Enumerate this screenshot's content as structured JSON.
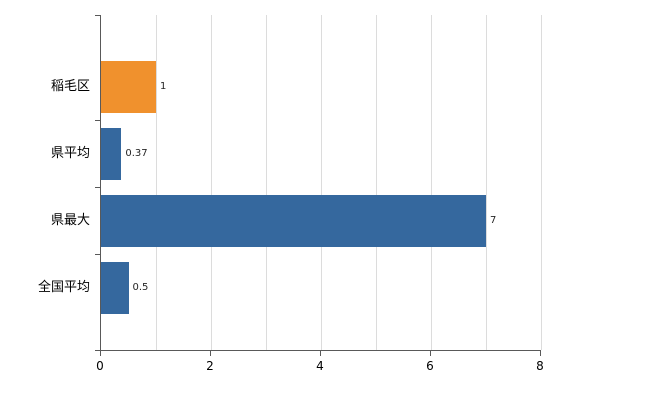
{
  "chart_data": {
    "type": "bar",
    "orientation": "horizontal",
    "title": "",
    "xlabel": "",
    "ylabel": "",
    "categories": [
      "稲毛区",
      "県平均",
      "県最大",
      "全国平均"
    ],
    "values": [
      1,
      0.37,
      7,
      0.5
    ],
    "value_labels": [
      "1",
      "0.37",
      "7",
      "0.5"
    ],
    "bar_colors": [
      "#f0912d",
      "#35689e",
      "#35689e",
      "#35689e"
    ],
    "xlim": [
      0,
      8
    ],
    "x_ticks": [
      0,
      2,
      4,
      6,
      8
    ],
    "gridline_step": 1,
    "grid": true,
    "legend": "none",
    "background_color": "#ffffff",
    "grid_color": "#dcdcdc",
    "axis_color": "#595959",
    "text_color": "#000000"
  }
}
